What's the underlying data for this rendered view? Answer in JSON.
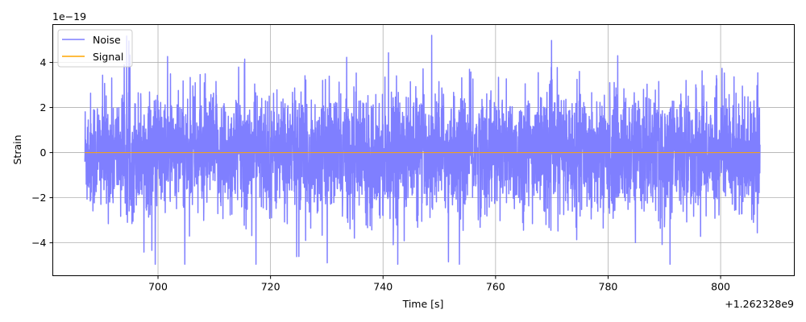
{
  "chart_data": {
    "type": "line",
    "title": "",
    "xlabel": "Time [s]",
    "ylabel": "Strain",
    "x_offset_label": "+1.262328e9",
    "y_scale_label": "1e−19",
    "xlim": [
      681.3,
      813.1
    ],
    "ylim": [
      -5.46,
      5.68
    ],
    "xticks": [
      700,
      720,
      740,
      760,
      780,
      800
    ],
    "xtick_labels": [
      "700",
      "720",
      "740",
      "760",
      "780",
      "800"
    ],
    "yticks": [
      -4,
      -2,
      0,
      2,
      4
    ],
    "ytick_labels": [
      "−4",
      "−2",
      "0",
      "2",
      "4"
    ],
    "grid": true,
    "legend_placement": "upper-left",
    "series": [
      {
        "name": "Noise",
        "color": "#7f7fff",
        "x_start": 687,
        "x_end": 807,
        "typical_std": 1.3,
        "max": 5.2,
        "min": -4.95
      },
      {
        "name": "Signal",
        "color": "#ffa500",
        "x_start": 687,
        "x_end": 807,
        "value": 0
      }
    ]
  }
}
